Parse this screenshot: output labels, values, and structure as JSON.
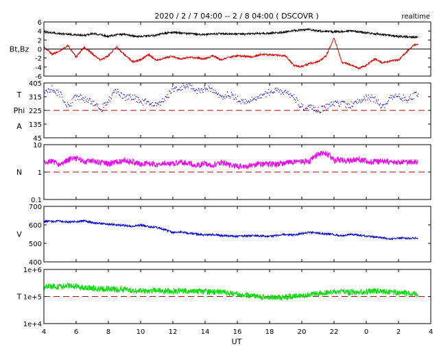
{
  "chart_data": {
    "type": "line",
    "title": "2020 / 2 / 7  04:00 -- 2 / 8  04:00 ( DSCOVR )",
    "badge": "realtime",
    "xlabel": "UT",
    "x_ticks": [
      "4",
      "6",
      "8",
      "10",
      "12",
      "14",
      "16",
      "18",
      "20",
      "22",
      "0",
      "2",
      "4"
    ],
    "x_range_hours": [
      0,
      24
    ],
    "panels": [
      {
        "id": "mag",
        "ylabel_lines": [
          "Bt,Bz"
        ],
        "scale": "linear",
        "ylim": [
          -6,
          6
        ],
        "yticks": [
          "6",
          "4",
          "2",
          "0",
          "-2",
          "-4",
          "-6"
        ],
        "zero_line": {
          "value": 0,
          "color": "#000000",
          "style": "solid"
        },
        "series": [
          {
            "key": "Bt",
            "color": "#000000",
            "hours": [
              0,
              0.5,
              1,
              1.5,
              2,
              2.5,
              3,
              3.5,
              4,
              4.5,
              5,
              5.5,
              6,
              6.5,
              7,
              7.5,
              8,
              8.5,
              9,
              9.5,
              10,
              10.5,
              11,
              11.5,
              12,
              12.5,
              13,
              13.5,
              14,
              14.5,
              15,
              15.5,
              16,
              16.5,
              17,
              17.5,
              18,
              18.5,
              19,
              19.5,
              20,
              20.5,
              21,
              21.5,
              22,
              22.5,
              23
            ],
            "values": [
              3.8,
              3.6,
              3.4,
              3.3,
              3.1,
              3.0,
              3.4,
              3.2,
              2.8,
              3.2,
              3.3,
              2.9,
              2.8,
              2.9,
              3.1,
              3.5,
              3.7,
              3.6,
              3.4,
              3.3,
              3.2,
              3.3,
              3.4,
              3.3,
              3.4,
              3.3,
              3.4,
              3.4,
              3.5,
              3.6,
              3.8,
              4.1,
              4.2,
              4.3,
              4.0,
              3.9,
              3.8,
              3.9,
              4.0,
              3.8,
              3.6,
              3.4,
              3.2,
              3.0,
              2.8,
              2.7,
              2.6
            ]
          },
          {
            "key": "Bz",
            "color": "#dd0000",
            "hours": [
              0,
              0.5,
              1,
              1.5,
              2,
              2.5,
              3,
              3.5,
              4,
              4.5,
              5,
              5.5,
              6,
              6.5,
              7,
              7.5,
              8,
              8.5,
              9,
              9.5,
              10,
              10.5,
              11,
              11.5,
              12,
              12.5,
              13,
              13.5,
              14,
              14.5,
              15,
              15.5,
              16,
              16.5,
              17,
              17.5,
              18,
              18.5,
              19,
              19.5,
              20,
              20.5,
              21,
              21.5,
              22,
              22.5,
              23
            ],
            "values": [
              0.6,
              -1.2,
              -0.4,
              0.8,
              -1.8,
              0.4,
              -1.0,
              -2.5,
              -1.5,
              0.5,
              -1.2,
              -2.8,
              -2.4,
              -1.2,
              -2.5,
              -2.0,
              -1.6,
              -2.2,
              -1.8,
              -2.0,
              -2.2,
              -1.5,
              -2.4,
              -1.8,
              -1.5,
              -1.6,
              -1.8,
              -1.2,
              -1.3,
              -1.4,
              -1.5,
              -3.6,
              -3.9,
              -3.2,
              -2.8,
              -1.6,
              2.5,
              -3.0,
              -3.4,
              -4.3,
              -3.6,
              -2.2,
              -3.1,
              -2.6,
              -2.4,
              -0.6,
              1.0
            ]
          }
        ]
      },
      {
        "id": "phi",
        "ylabel_lines": [
          "T",
          "Phi",
          "A"
        ],
        "scale": "linear",
        "ylim": [
          45,
          405
        ],
        "yticks": [
          "405",
          "315",
          "225",
          "135",
          "45"
        ],
        "ref_line": {
          "value": 225,
          "color": "#aa0000",
          "style": "dashed"
        },
        "series": [
          {
            "key": "Phi",
            "color": "#0000cc",
            "style": "dots",
            "hours": [
              0,
              0.5,
              1,
              1.5,
              2,
              2.5,
              3,
              3.5,
              4,
              4.5,
              5,
              5.5,
              6,
              6.5,
              7,
              7.5,
              8,
              8.5,
              9,
              9.5,
              10,
              10.5,
              11,
              11.5,
              12,
              12.5,
              13,
              13.5,
              14,
              14.5,
              15,
              15.5,
              16,
              16.5,
              17,
              17.5,
              18,
              18.5,
              19,
              19.5,
              20,
              20.5,
              21,
              21.5,
              22,
              22.5,
              23
            ],
            "values": [
              360,
              370,
              330,
              250,
              325,
              300,
              280,
              230,
              300,
              360,
              310,
              320,
              280,
              285,
              260,
              300,
              370,
              380,
              390,
              350,
              370,
              360,
              320,
              330,
              300,
              280,
              310,
              320,
              350,
              360,
              340,
              310,
              250,
              245,
              230,
              250,
              270,
              270,
              260,
              290,
              320,
              300,
              250,
              310,
              320,
              300,
              330
            ]
          }
        ]
      },
      {
        "id": "density",
        "ylabel_lines": [
          "N"
        ],
        "scale": "log",
        "ylim": [
          0.1,
          10
        ],
        "yticks": [
          "10",
          "1",
          "0.1"
        ],
        "ref_line": {
          "value": 1,
          "color": "#aa0000",
          "style": "dashed"
        },
        "series": [
          {
            "key": "N",
            "color": "#ee00ee",
            "hours": [
              0,
              0.5,
              1,
              1.5,
              2,
              2.5,
              3,
              3.5,
              4,
              4.5,
              5,
              5.5,
              6,
              6.5,
              7,
              7.5,
              8,
              8.5,
              9,
              9.5,
              10,
              10.5,
              11,
              11.5,
              12,
              12.5,
              13,
              13.5,
              14,
              14.5,
              15,
              15.5,
              16,
              16.5,
              17,
              17.5,
              18,
              18.5,
              19,
              19.5,
              20,
              20.5,
              21,
              21.5,
              22,
              22.5,
              23
            ],
            "values": [
              2.0,
              2.5,
              1.8,
              2.8,
              3.2,
              2.4,
              2.6,
              2.2,
              2.0,
              2.4,
              2.6,
              2.3,
              1.9,
              2.0,
              1.9,
              2.1,
              1.9,
              2.4,
              2.0,
              1.8,
              2.0,
              1.8,
              2.2,
              1.9,
              1.6,
              1.6,
              1.8,
              2.0,
              1.9,
              2.0,
              2.1,
              2.3,
              2.4,
              2.5,
              4.5,
              5.0,
              2.6,
              2.8,
              2.6,
              3.0,
              2.5,
              2.3,
              2.6,
              2.2,
              2.4,
              2.2,
              2.3
            ]
          }
        ]
      },
      {
        "id": "speed",
        "ylabel_lines": [
          "V"
        ],
        "scale": "linear",
        "ylim": [
          400,
          700
        ],
        "yticks": [
          "700",
          "600",
          "500",
          "400"
        ],
        "series": [
          {
            "key": "V",
            "color": "#0000dd",
            "hours": [
              0,
              0.5,
              1,
              1.5,
              2,
              2.5,
              3,
              3.5,
              4,
              4.5,
              5,
              5.5,
              6,
              6.5,
              7,
              7.5,
              8,
              8.5,
              9,
              9.5,
              10,
              10.5,
              11,
              11.5,
              12,
              12.5,
              13,
              13.5,
              14,
              14.5,
              15,
              15.5,
              16,
              16.5,
              17,
              17.5,
              18,
              18.5,
              19,
              19.5,
              20,
              20.5,
              21,
              21.5,
              22,
              22.5,
              23
            ],
            "values": [
              620,
              618,
              620,
              615,
              616,
              622,
              612,
              608,
              604,
              600,
              596,
              592,
              600,
              590,
              585,
              575,
              558,
              560,
              555,
              550,
              545,
              548,
              542,
              540,
              538,
              540,
              542,
              540,
              538,
              544,
              548,
              545,
              552,
              560,
              555,
              550,
              548,
              540,
              550,
              545,
              540,
              535,
              530,
              525,
              530,
              528,
              528
            ]
          }
        ]
      },
      {
        "id": "temperature",
        "ylabel_lines": [
          "T"
        ],
        "scale": "log",
        "ylim": [
          10000,
          1000000
        ],
        "yticks": [
          "1e+6",
          "1e+5",
          "1e+4"
        ],
        "ref_line": {
          "value": 100000,
          "color": "#aa0000",
          "style": "dashed"
        },
        "series": [
          {
            "key": "T",
            "color": "#00dd00",
            "hours": [
              0,
              0.5,
              1,
              1.5,
              2,
              2.5,
              3,
              3.5,
              4,
              4.5,
              5,
              5.5,
              6,
              6.5,
              7,
              7.5,
              8,
              8.5,
              9,
              9.5,
              10,
              10.5,
              11,
              11.5,
              12,
              12.5,
              13,
              13.5,
              14,
              14.5,
              15,
              15.5,
              16,
              16.5,
              17,
              17.5,
              18,
              18.5,
              19,
              19.5,
              20,
              20.5,
              21,
              21.5,
              22,
              22.5,
              23
            ],
            "values": [
              220000,
              240000,
              230000,
              250000,
              240000,
              210000,
              200000,
              190000,
              200000,
              180000,
              185000,
              170000,
              165000,
              160000,
              170000,
              160000,
              150000,
              165000,
              155000,
              160000,
              150000,
              145000,
              150000,
              130000,
              120000,
              110000,
              105000,
              95000,
              90000,
              95000,
              92000,
              105000,
              110000,
              120000,
              130000,
              140000,
              160000,
              150000,
              140000,
              145000,
              150000,
              160000,
              155000,
              150000,
              140000,
              130000,
              120000
            ]
          }
        ]
      }
    ]
  }
}
